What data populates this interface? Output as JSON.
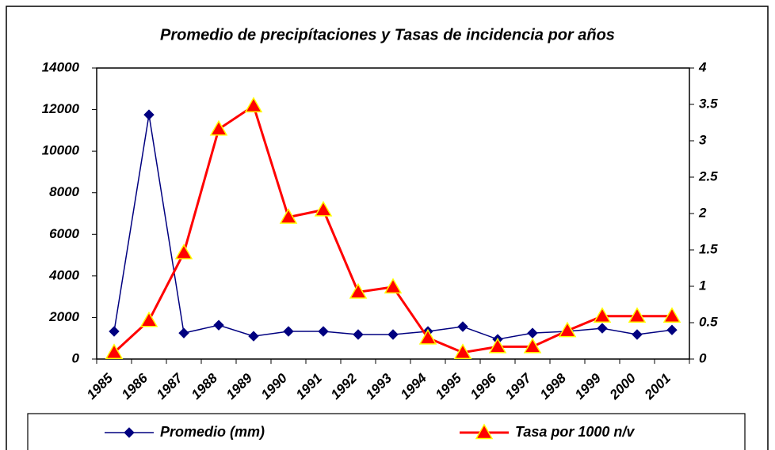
{
  "chart_data": {
    "type": "line",
    "title": "Promedio de precipítaciones y Tasas de incidencia por años",
    "categories": [
      "1985",
      "1986",
      "1987",
      "1988",
      "1989",
      "1990",
      "1991",
      "1992",
      "1993",
      "1994",
      "1995",
      "1996",
      "1997",
      "1998",
      "1999",
      "2000",
      "2001"
    ],
    "series": [
      {
        "name": "Promedio (mm)",
        "color": "#000080",
        "marker": "diamond",
        "axis": "y",
        "values": [
          1330,
          11750,
          1250,
          1630,
          1100,
          1330,
          1330,
          1180,
          1180,
          1330,
          1560,
          950,
          1250,
          1330,
          1480,
          1180,
          1400
        ]
      },
      {
        "name": "Tasa por 1000 n/v",
        "color": "#ff0000",
        "marker": "triangle",
        "marker_edge": "#ffff00",
        "axis": "y2",
        "values": [
          0.09,
          0.53,
          1.46,
          3.16,
          3.48,
          1.95,
          2.05,
          0.92,
          0.99,
          0.29,
          0.09,
          0.17,
          0.17,
          0.39,
          0.59,
          0.59,
          0.59
        ]
      }
    ],
    "ylim": [
      0,
      14000
    ],
    "yticks": [
      0,
      2000,
      4000,
      6000,
      8000,
      10000,
      12000,
      14000
    ],
    "y2lim": [
      0,
      4
    ],
    "y2ticks": [
      0,
      0.5,
      1,
      1.5,
      2,
      2.5,
      3,
      3.5,
      4
    ],
    "grid": false,
    "legend": "bottom"
  }
}
